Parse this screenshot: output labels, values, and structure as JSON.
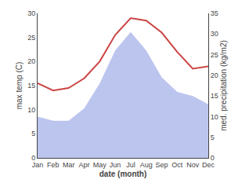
{
  "chart_data": {
    "type": "line",
    "categories": [
      "Jan",
      "Feb",
      "Mar",
      "Apr",
      "May",
      "Jun",
      "Jul",
      "Aug",
      "Sep",
      "Oct",
      "Nov",
      "Dec"
    ],
    "xlabel": "date (month)",
    "ylabel": "max temp (C)",
    "y2label": "med. precipitation (kg/m2)",
    "series": [
      {
        "type": "area",
        "axis": "y2",
        "color": "#bcc5ee",
        "values": [
          10.0,
          9.0,
          9.0,
          12.0,
          18.0,
          26.0,
          30.5,
          26.0,
          19.5,
          16.0,
          15.0,
          13.0
        ]
      },
      {
        "type": "line",
        "color": "#cc4444",
        "values": [
          15.5,
          14.0,
          14.5,
          16.5,
          20.0,
          25.5,
          29.0,
          28.5,
          26.0,
          22.0,
          18.5,
          19.0
        ]
      }
    ],
    "ylim": [
      0,
      30
    ],
    "yticks": [
      0,
      5,
      10,
      15,
      20,
      25,
      30
    ],
    "y2lim": [
      0,
      35
    ],
    "y2ticks": [
      0,
      5,
      10,
      15,
      20,
      25,
      30,
      35
    ],
    "grid": false
  }
}
